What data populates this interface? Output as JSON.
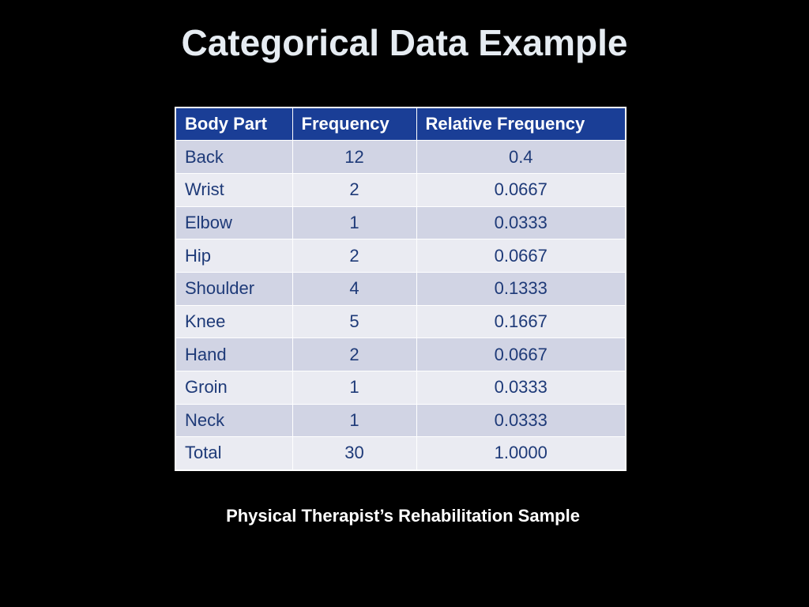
{
  "slide": {
    "title": "Categorical Data Example",
    "caption": "Physical Therapist’s Rehabilitation Sample"
  },
  "colors": {
    "background": "#000000",
    "title_text": "#e6ecf2",
    "header_fill": "#1a3e96",
    "row_band_dark": "#d1d4e4",
    "row_band_light": "#eaebf2",
    "cell_text": "#1e3a78"
  },
  "table": {
    "headers": [
      "Body Part",
      "Frequency",
      "Relative Frequency"
    ],
    "rows": [
      [
        "Back",
        "12",
        "0.4"
      ],
      [
        "Wrist",
        "2",
        "0.0667"
      ],
      [
        "Elbow",
        "1",
        "0.0333"
      ],
      [
        "Hip",
        "2",
        "0.0667"
      ],
      [
        "Shoulder",
        "4",
        "0.1333"
      ],
      [
        "Knee",
        "5",
        "0.1667"
      ],
      [
        "Hand",
        "2",
        "0.0667"
      ],
      [
        "Groin",
        "1",
        "0.0333"
      ],
      [
        "Neck",
        "1",
        "0.0333"
      ],
      [
        "Total",
        "30",
        "1.0000"
      ]
    ]
  }
}
